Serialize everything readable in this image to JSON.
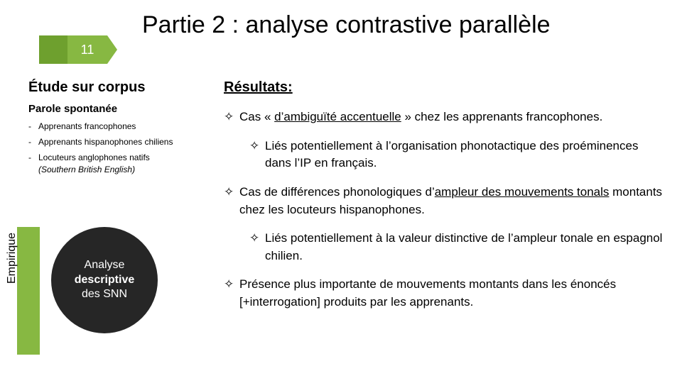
{
  "page_number": "11",
  "title": "Partie 2 : analyse contrastive parallèle",
  "left": {
    "heading": "Étude sur corpus",
    "subheading": "Parole spontanée",
    "items": [
      {
        "text": "Apprenants francophones"
      },
      {
        "text": "Apprenants hispanophones chiliens"
      },
      {
        "text": "Locuteurs anglophones natifs",
        "italic": "(Southern British English)"
      }
    ]
  },
  "empirique_label": "Empirique",
  "circle_lines": [
    "Analyse",
    "descriptive",
    "des SNN"
  ],
  "right": {
    "heading": "Résultats:",
    "bullet_marker": "✧",
    "points": [
      {
        "pre": "Cas « ",
        "ul": "d’ambiguïté accentuelle",
        "post": " » chez les apprenants francophones."
      },
      {
        "sub": true,
        "plain": "Liés potentiellement à l’organisation phonotactique des proéminences dans l’IP en français."
      },
      {
        "pre": "Cas de différences phonologiques d’",
        "ul": "ampleur des mouvements tonals",
        "post": " montants chez les locuteurs hispanophones."
      },
      {
        "sub": true,
        "plain": "Liés potentiellement à la valeur distinctive de l’ampleur tonale en espagnol chilien."
      },
      {
        "plain": "Présence plus importante de mouvements montants dans les énoncés [+interrogation] produits par les apprenants."
      }
    ]
  },
  "colors": {
    "badge_dark": "#6ea02e",
    "badge_light": "#87b842",
    "circle_back1": "#89acd6",
    "circle_back2": "#4f657f",
    "circle_main": "#262626"
  }
}
